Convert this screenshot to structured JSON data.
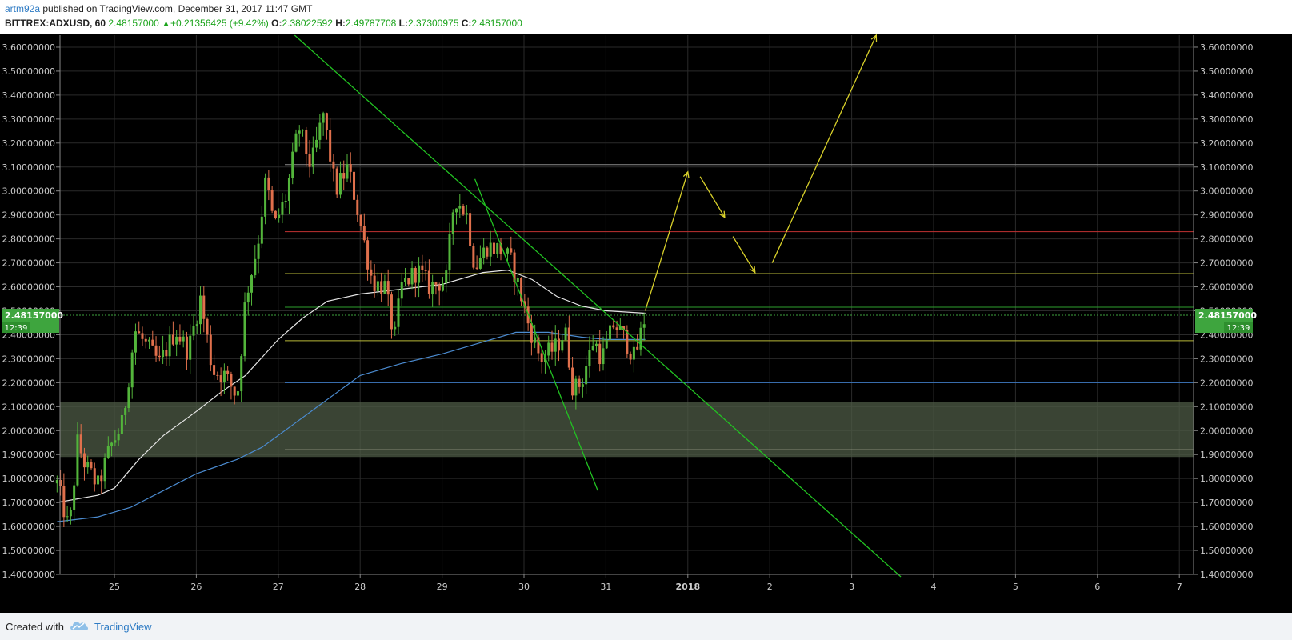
{
  "header": {
    "author": "artm92a",
    "published_text": " published on TradingView.com, December 31, 2017 11:47 GMT",
    "symbol": "BITTREX:ADXUSD, 60",
    "last_price": "2.48157000",
    "change": "+0.21356425 (+9.42%)",
    "open_label": "O:",
    "open": "2.38022592",
    "high_label": "H:",
    "high": "2.49787708",
    "low_label": "L:",
    "low": "2.37300975",
    "close_label": "C:",
    "close": "2.48157000"
  },
  "footer": {
    "created_with": "Created with",
    "brand": "TradingView"
  },
  "price_tag": {
    "price": "2.48157000",
    "countdown": "12:39"
  },
  "colors": {
    "background": "#000000",
    "up": "#53b53b",
    "down": "#e0704c",
    "grid": "#2a2a2a",
    "axis_text": "#cccccc",
    "price_tag": "#3ea53e",
    "trendline": "#22c222",
    "arrow": "#d8d02a",
    "zone": "#4e5b46",
    "ma_white": "#e6e6e6",
    "ma_blue": "#4b8bd0"
  },
  "chart_data": {
    "type": "candlestick",
    "x_ticks": [
      "25",
      "26",
      "27",
      "28",
      "29",
      "30",
      "31",
      "2018",
      "2",
      "3",
      "4",
      "5",
      "6",
      "7"
    ],
    "ylim": [
      1.4,
      3.65
    ],
    "y_ticks": [
      "1.40000000",
      "1.50000000",
      "1.60000000",
      "1.70000000",
      "1.80000000",
      "1.90000000",
      "2.00000000",
      "2.10000000",
      "2.20000000",
      "2.30000000",
      "2.40000000",
      "2.50000000",
      "2.60000000",
      "2.70000000",
      "2.80000000",
      "2.90000000",
      "3.00000000",
      "3.10000000",
      "3.20000000",
      "3.30000000",
      "3.40000000",
      "3.50000000",
      "3.60000000"
    ],
    "keyframes": [
      [
        24.3,
        1.78
      ],
      [
        24.45,
        1.58
      ],
      [
        24.55,
        1.95
      ],
      [
        24.65,
        1.85
      ],
      [
        24.8,
        1.77
      ],
      [
        24.95,
        1.93
      ],
      [
        25.1,
        2.03
      ],
      [
        25.25,
        2.42
      ],
      [
        25.4,
        2.35
      ],
      [
        25.55,
        2.28
      ],
      [
        25.75,
        2.42
      ],
      [
        25.9,
        2.33
      ],
      [
        26.05,
        2.55
      ],
      [
        26.2,
        2.25
      ],
      [
        26.35,
        2.23
      ],
      [
        26.5,
        2.14
      ],
      [
        26.6,
        2.55
      ],
      [
        26.75,
        2.78
      ],
      [
        26.85,
        3.05
      ],
      [
        26.95,
        2.85
      ],
      [
        27.1,
        2.98
      ],
      [
        27.25,
        3.27
      ],
      [
        27.4,
        3.1
      ],
      [
        27.55,
        3.32
      ],
      [
        27.7,
        3.0
      ],
      [
        27.85,
        3.1
      ],
      [
        27.95,
        2.95
      ],
      [
        28.1,
        2.7
      ],
      [
        28.15,
        2.62
      ],
      [
        28.3,
        2.6
      ],
      [
        28.42,
        2.38
      ],
      [
        28.5,
        2.6
      ],
      [
        28.7,
        2.67
      ],
      [
        28.85,
        2.6
      ],
      [
        29.05,
        2.63
      ],
      [
        29.15,
        2.98
      ],
      [
        29.3,
        2.9
      ],
      [
        29.4,
        2.68
      ],
      [
        29.55,
        2.77
      ],
      [
        29.75,
        2.75
      ],
      [
        29.85,
        2.7
      ],
      [
        29.95,
        2.58
      ],
      [
        30.05,
        2.45
      ],
      [
        30.2,
        2.3
      ],
      [
        30.4,
        2.35
      ],
      [
        30.5,
        2.42
      ],
      [
        30.6,
        2.17
      ],
      [
        30.7,
        2.2
      ],
      [
        30.85,
        2.38
      ],
      [
        30.95,
        2.3
      ],
      [
        31.1,
        2.45
      ],
      [
        31.25,
        2.37
      ],
      [
        31.35,
        2.3
      ],
      [
        31.48,
        2.48
      ]
    ],
    "ma_fast": [
      [
        24.3,
        1.7
      ],
      [
        24.8,
        1.73
      ],
      [
        25.0,
        1.76
      ],
      [
        25.3,
        1.88
      ],
      [
        25.6,
        1.98
      ],
      [
        26.0,
        2.08
      ],
      [
        26.3,
        2.16
      ],
      [
        26.6,
        2.23
      ],
      [
        27.0,
        2.38
      ],
      [
        27.3,
        2.47
      ],
      [
        27.6,
        2.54
      ],
      [
        28.0,
        2.57
      ],
      [
        28.5,
        2.59
      ],
      [
        29.0,
        2.61
      ],
      [
        29.5,
        2.66
      ],
      [
        29.8,
        2.67
      ],
      [
        30.1,
        2.63
      ],
      [
        30.4,
        2.56
      ],
      [
        30.7,
        2.52
      ],
      [
        31.0,
        2.5
      ],
      [
        31.48,
        2.49
      ]
    ],
    "ma_slow": [
      [
        24.3,
        1.62
      ],
      [
        24.8,
        1.64
      ],
      [
        25.2,
        1.68
      ],
      [
        25.6,
        1.75
      ],
      [
        26.0,
        1.82
      ],
      [
        26.5,
        1.88
      ],
      [
        26.8,
        1.93
      ],
      [
        27.2,
        2.03
      ],
      [
        27.6,
        2.13
      ],
      [
        28.0,
        2.23
      ],
      [
        28.5,
        2.28
      ],
      [
        29.0,
        2.32
      ],
      [
        29.5,
        2.37
      ],
      [
        29.9,
        2.41
      ],
      [
        30.3,
        2.41
      ],
      [
        30.7,
        2.39
      ],
      [
        31.0,
        2.38
      ],
      [
        31.48,
        2.38
      ]
    ],
    "support_zone": [
      1.89,
      2.12
    ],
    "hlines": [
      {
        "y": 3.11,
        "color": "#8a8a8a"
      },
      {
        "y": 2.83,
        "color": "#c23232"
      },
      {
        "y": 2.655,
        "color": "#b8b838"
      },
      {
        "y": 2.515,
        "color": "#2ea02e"
      },
      {
        "y": 2.375,
        "color": "#b8b838"
      },
      {
        "y": 2.2,
        "color": "#3c78c0"
      },
      {
        "y": 1.92,
        "color": "#c8c8b0"
      }
    ],
    "trendlines": [
      {
        "from": [
          27.2,
          3.65
        ],
        "to": [
          34.6,
          1.39
        ]
      },
      {
        "from": [
          29.4,
          3.05
        ],
        "to": [
          30.9,
          1.75
        ]
      }
    ],
    "arrows": [
      {
        "from": [
          31.48,
          2.5
        ],
        "to": [
          32.0,
          3.08
        ]
      },
      {
        "from": [
          32.15,
          3.06
        ],
        "to": [
          32.45,
          2.89
        ]
      },
      {
        "from": [
          32.55,
          2.81
        ],
        "to": [
          32.82,
          2.66
        ]
      },
      {
        "from": [
          33.03,
          2.7
        ],
        "to": [
          34.3,
          3.65
        ]
      }
    ]
  }
}
